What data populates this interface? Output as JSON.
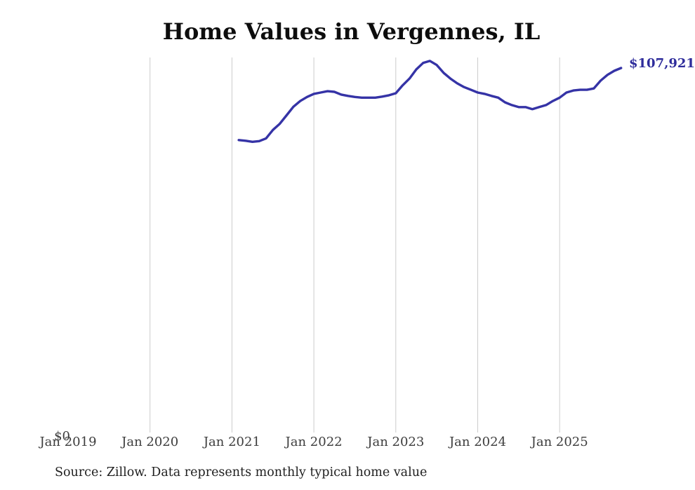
{
  "chart_data": {
    "type": "line",
    "title": "Home Values in Vergennes, IL",
    "source_note": "Source: Zillow. Data represents monthly typical home value",
    "end_label": "$107,921",
    "y_zero_label": "$0",
    "x_tick_labels": [
      "Jan 2019",
      "Jan 2020",
      "Jan 2021",
      "Jan 2022",
      "Jan 2023",
      "Jan 2024",
      "Jan 2025"
    ],
    "gridline_years": [
      2020,
      2021,
      2022,
      2023,
      2024,
      2025
    ],
    "x_axis_range_years": [
      2019,
      2026
    ],
    "ylim": [
      0,
      112000
    ],
    "legend": "none",
    "grid": "vertical-only",
    "line_color": "#3533a6",
    "end_label_color": "#2e2c9b",
    "grid_color": "#cccccc",
    "series": [
      {
        "name": "Monthly typical home value",
        "months": [
          "2021-01",
          "2021-02",
          "2021-03",
          "2021-04",
          "2021-05",
          "2021-06",
          "2021-07",
          "2021-08",
          "2021-09",
          "2021-10",
          "2021-11",
          "2021-12",
          "2022-01",
          "2022-02",
          "2022-03",
          "2022-04",
          "2022-05",
          "2022-06",
          "2022-07",
          "2022-08",
          "2022-09",
          "2022-10",
          "2022-11",
          "2022-12",
          "2023-01",
          "2023-02",
          "2023-03",
          "2023-04",
          "2023-05",
          "2023-06",
          "2023-07",
          "2023-08",
          "2023-09",
          "2023-10",
          "2023-11",
          "2023-12",
          "2024-01",
          "2024-02",
          "2024-03",
          "2024-04",
          "2024-05",
          "2024-06",
          "2024-07",
          "2024-08",
          "2024-09",
          "2024-10",
          "2024-11",
          "2024-12",
          "2025-01",
          "2025-02",
          "2025-03",
          "2025-04",
          "2025-05",
          "2025-06",
          "2025-07",
          "2025-08",
          "2025-09"
        ],
        "values": [
          86700,
          86500,
          86200,
          86400,
          87200,
          89700,
          91500,
          94000,
          96500,
          98200,
          99400,
          100300,
          100700,
          101100,
          100900,
          100100,
          99700,
          99400,
          99200,
          99200,
          99200,
          99500,
          99900,
          100500,
          102800,
          104800,
          107500,
          109400,
          110000,
          108800,
          106500,
          104800,
          103400,
          102300,
          101500,
          100700,
          100300,
          99700,
          99200,
          97800,
          97000,
          96400,
          96400,
          95800,
          96400,
          97000,
          98200,
          99200,
          100700,
          101300,
          101500,
          101500,
          101900,
          104200,
          105900,
          107100,
          107921
        ]
      }
    ],
    "latest_value": 107921
  }
}
